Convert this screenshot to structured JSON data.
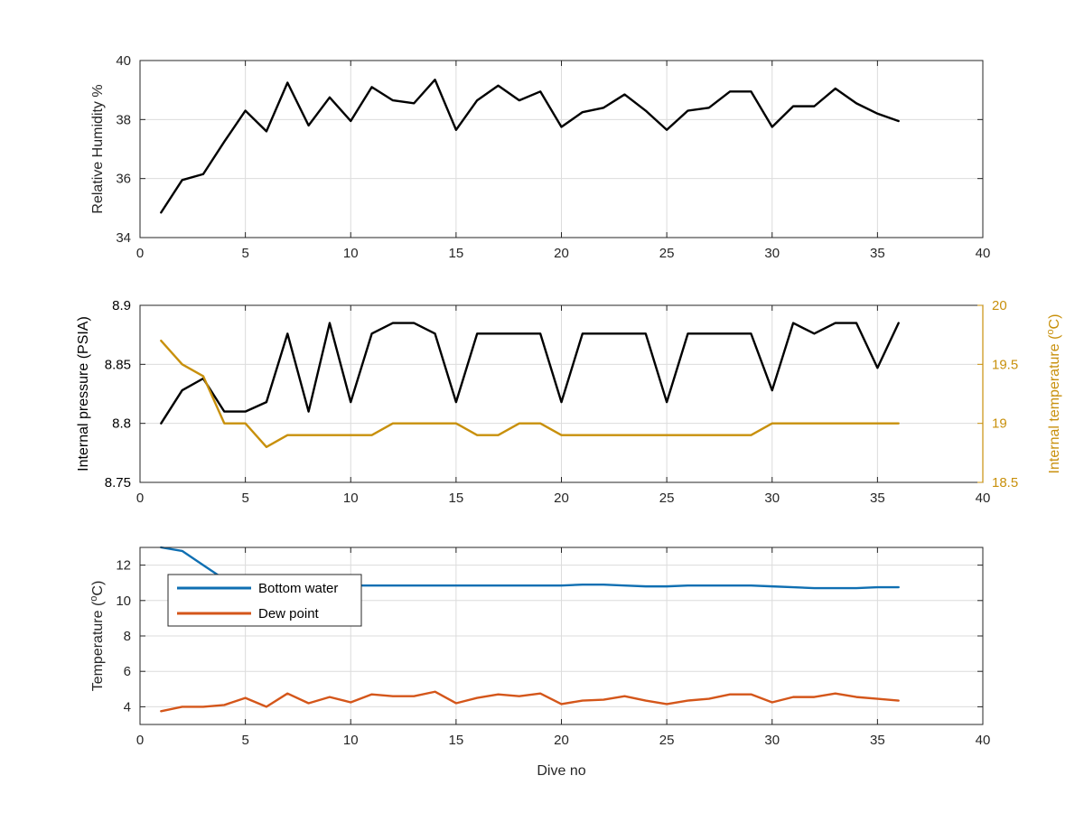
{
  "colors": {
    "black": "#000000",
    "gold": "#c8900c",
    "blue": "#0f6fb2",
    "orange": "#d4561a",
    "grid": "#dcdcdc",
    "axis": "#262626",
    "tick_text": "#262626"
  },
  "chart_data": [
    {
      "type": "line",
      "title": "",
      "xlabel": "",
      "ylabel": "Relative Humidity %",
      "xlim": [
        0,
        40
      ],
      "ylim": [
        34,
        40
      ],
      "xticks": [
        0,
        5,
        10,
        15,
        20,
        25,
        30,
        35,
        40
      ],
      "yticks": [
        34,
        36,
        38,
        40
      ],
      "grid": true,
      "series": [
        {
          "color": "black",
          "x": [
            1,
            2,
            3,
            4,
            5,
            6,
            7,
            8,
            9,
            10,
            11,
            12,
            13,
            14,
            15,
            16,
            17,
            18,
            19,
            20,
            21,
            22,
            23,
            24,
            25,
            26,
            27,
            28,
            29,
            30,
            31,
            32,
            33,
            34,
            35,
            36
          ],
          "values": [
            34.85,
            35.95,
            36.15,
            37.25,
            38.3,
            37.6,
            39.25,
            37.8,
            38.75,
            37.95,
            39.1,
            38.65,
            38.55,
            39.35,
            37.65,
            38.65,
            39.15,
            38.65,
            38.95,
            37.75,
            38.25,
            38.4,
            38.85,
            38.3,
            37.65,
            38.3,
            38.4,
            38.95,
            38.95,
            37.75,
            38.45,
            38.45,
            39.05,
            38.55,
            38.2,
            37.95
          ]
        }
      ]
    },
    {
      "type": "line",
      "title": "",
      "xlabel": "",
      "ylabel": "Internal pressure (PSIA)",
      "ylabel_right": "Internal temperature (°C)",
      "xlim": [
        0,
        40
      ],
      "ylim": [
        8.75,
        8.9
      ],
      "ylim_right": [
        18.5,
        20
      ],
      "xticks": [
        0,
        5,
        10,
        15,
        20,
        25,
        30,
        35,
        40
      ],
      "yticks": [
        "8.75",
        "8.8",
        "8.85",
        "8.9"
      ],
      "yticks_right": [
        "18.5",
        "19",
        "19.5",
        "20"
      ],
      "grid": true,
      "series": [
        {
          "axis": "left",
          "color": "black",
          "x": [
            1,
            2,
            3,
            4,
            5,
            6,
            7,
            8,
            9,
            10,
            11,
            12,
            13,
            14,
            15,
            16,
            17,
            18,
            19,
            20,
            21,
            22,
            23,
            24,
            25,
            26,
            27,
            28,
            29,
            30,
            31,
            32,
            33,
            34,
            35,
            36
          ],
          "values": [
            8.8,
            8.828,
            8.838,
            8.81,
            8.81,
            8.818,
            8.876,
            8.81,
            8.885,
            8.818,
            8.876,
            8.885,
            8.885,
            8.876,
            8.818,
            8.876,
            8.876,
            8.876,
            8.876,
            8.818,
            8.876,
            8.876,
            8.876,
            8.876,
            8.818,
            8.876,
            8.876,
            8.876,
            8.876,
            8.828,
            8.885,
            8.876,
            8.885,
            8.885,
            8.847,
            8.885
          ]
        },
        {
          "axis": "right",
          "color": "gold",
          "x": [
            1,
            2,
            3,
            4,
            5,
            6,
            7,
            8,
            9,
            10,
            11,
            12,
            13,
            14,
            15,
            16,
            17,
            18,
            19,
            20,
            21,
            22,
            23,
            24,
            25,
            26,
            27,
            28,
            29,
            30,
            31,
            32,
            33,
            34,
            35,
            36
          ],
          "values": [
            19.7,
            19.5,
            19.4,
            19.0,
            19.0,
            18.8,
            18.9,
            18.9,
            18.9,
            18.9,
            18.9,
            19.0,
            19.0,
            19.0,
            19.0,
            18.9,
            18.9,
            19.0,
            19.0,
            18.9,
            18.9,
            18.9,
            18.9,
            18.9,
            18.9,
            18.9,
            18.9,
            18.9,
            18.9,
            19.0,
            19.0,
            19.0,
            19.0,
            19.0,
            19.0,
            19.0
          ]
        }
      ]
    },
    {
      "type": "line",
      "title": "",
      "xlabel": "Dive no",
      "ylabel": "Temperature (°C)",
      "xlim": [
        0,
        40
      ],
      "ylim": [
        3,
        13
      ],
      "xticks": [
        0,
        5,
        10,
        15,
        20,
        25,
        30,
        35,
        40
      ],
      "yticks": [
        4,
        6,
        8,
        10,
        12
      ],
      "grid": true,
      "legend": "top-left",
      "series": [
        {
          "name": "Bottom water",
          "color": "blue",
          "x": [
            1,
            2,
            3,
            4,
            5,
            6,
            7,
            8,
            9,
            10,
            11,
            12,
            13,
            14,
            15,
            16,
            17,
            18,
            19,
            20,
            21,
            22,
            23,
            24,
            25,
            26,
            27,
            28,
            29,
            30,
            31,
            32,
            33,
            34,
            35,
            36
          ],
          "values": [
            13.0,
            12.8,
            12.0,
            11.2,
            10.9,
            10.85,
            10.85,
            10.85,
            10.85,
            10.85,
            10.85,
            10.85,
            10.85,
            10.85,
            10.85,
            10.85,
            10.85,
            10.85,
            10.85,
            10.85,
            10.9,
            10.9,
            10.85,
            10.8,
            10.8,
            10.85,
            10.85,
            10.85,
            10.85,
            10.8,
            10.75,
            10.7,
            10.7,
            10.7,
            10.75,
            10.75
          ]
        },
        {
          "name": "Dew point",
          "color": "orange",
          "x": [
            1,
            2,
            3,
            4,
            5,
            6,
            7,
            8,
            9,
            10,
            11,
            12,
            13,
            14,
            15,
            16,
            17,
            18,
            19,
            20,
            21,
            22,
            23,
            24,
            25,
            26,
            27,
            28,
            29,
            30,
            31,
            32,
            33,
            34,
            35,
            36
          ],
          "values": [
            3.75,
            4.0,
            4.0,
            4.1,
            4.5,
            4.0,
            4.75,
            4.2,
            4.55,
            4.25,
            4.7,
            4.6,
            4.6,
            4.85,
            4.2,
            4.5,
            4.7,
            4.6,
            4.75,
            4.15,
            4.35,
            4.4,
            4.6,
            4.35,
            4.15,
            4.35,
            4.45,
            4.7,
            4.7,
            4.25,
            4.55,
            4.55,
            4.75,
            4.55,
            4.45,
            4.35
          ]
        }
      ]
    }
  ]
}
